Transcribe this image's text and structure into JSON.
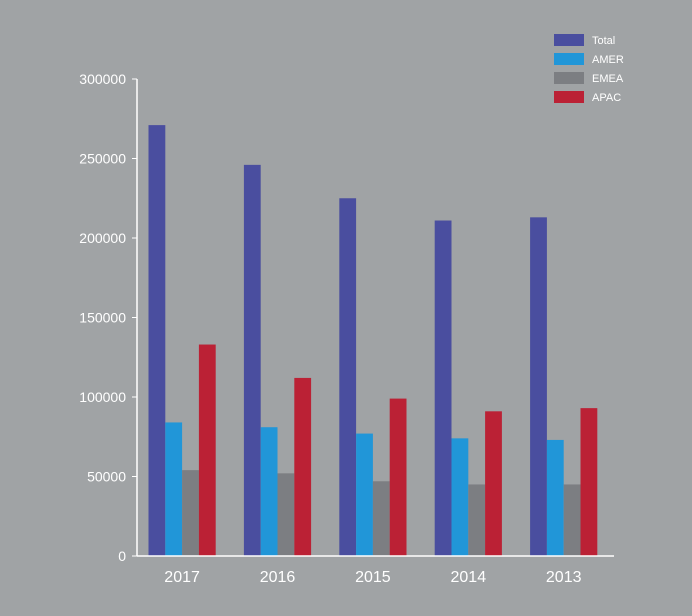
{
  "colors": {
    "background": "#a0a3a5",
    "axis": "#ffffff",
    "total": "#4a4e9f",
    "amer": "#2196d8",
    "emea": "#7c7e82",
    "apac": "#bb2135"
  },
  "chart_data": {
    "type": "bar",
    "title": "",
    "xlabel": "",
    "ylabel": "",
    "categories": [
      "2017",
      "2016",
      "2015",
      "2014",
      "2013"
    ],
    "series": [
      {
        "name": "Total",
        "color": "#4a4e9f",
        "values": [
          271000,
          246000,
          225000,
          211000,
          213000
        ]
      },
      {
        "name": "AMER",
        "color": "#2196d8",
        "values": [
          84000,
          81000,
          77000,
          74000,
          73000
        ]
      },
      {
        "name": "EMEA",
        "color": "#7c7e82",
        "values": [
          54000,
          52000,
          47000,
          45000,
          45000
        ]
      },
      {
        "name": "APAC",
        "color": "#bb2135",
        "values": [
          133000,
          112000,
          99000,
          91000,
          93000
        ]
      }
    ],
    "ylim": [
      0,
      300000
    ],
    "yticks": [
      "0",
      "50000",
      "100000",
      "150000",
      "200000",
      "250000",
      "300000"
    ],
    "ytick_values": [
      0,
      50000,
      100000,
      150000,
      200000,
      250000,
      300000
    ],
    "grid": false,
    "legend_position": "top-right"
  }
}
